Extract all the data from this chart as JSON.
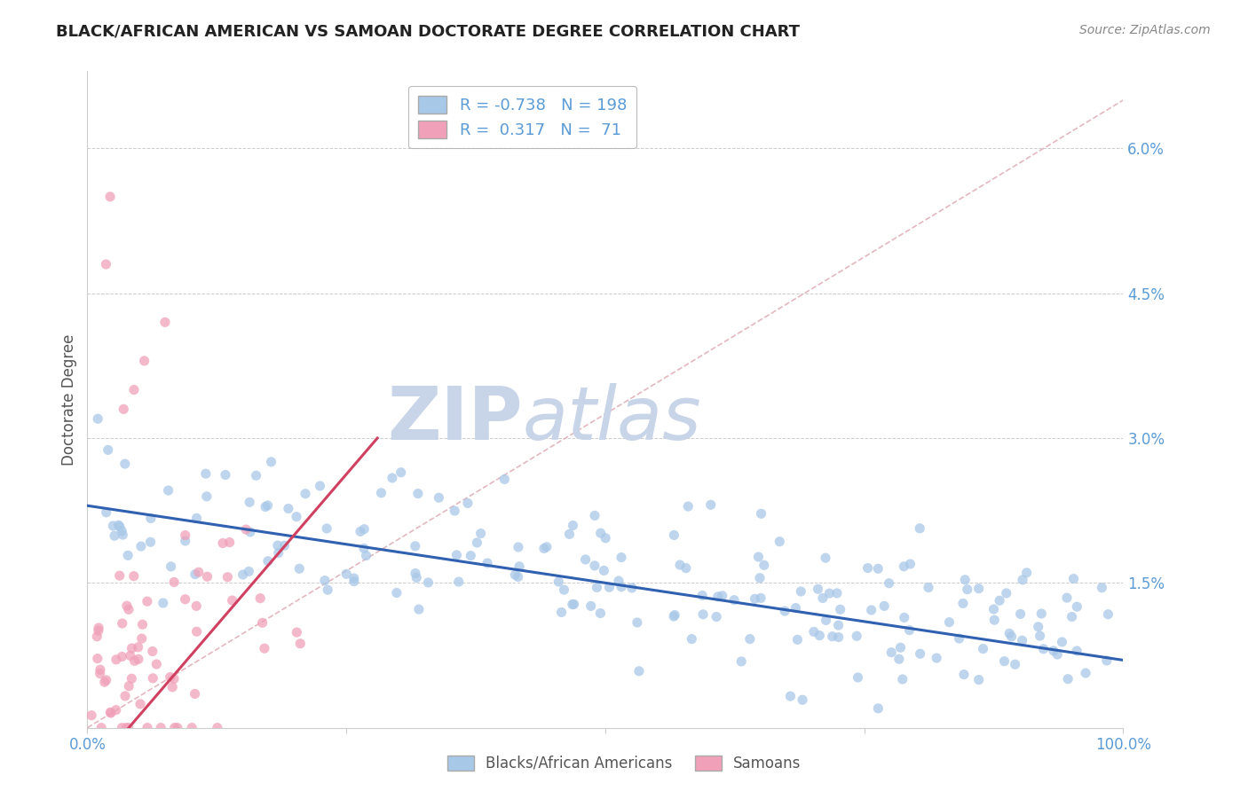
{
  "title": "BLACK/AFRICAN AMERICAN VS SAMOAN DOCTORATE DEGREE CORRELATION CHART",
  "source": "Source: ZipAtlas.com",
  "ylabel": "Doctorate Degree",
  "blue_R": -0.738,
  "blue_N": 198,
  "pink_R": 0.317,
  "pink_N": 71,
  "blue_color": "#A8C8E8",
  "pink_color": "#F0A0B8",
  "blue_line_color": "#3060B0",
  "pink_line_color": "#D04060",
  "diagonal_color": "#E0B0B8",
  "title_color": "#222222",
  "tick_label_color": "#5B9BD5",
  "watermark_zip_color": "#C8D4E8",
  "watermark_atlas_color": "#C8D4E8",
  "background_color": "#FFFFFF",
  "grid_color": "#CCCCCC",
  "xlim": [
    0.0,
    1.0
  ],
  "ylim": [
    0.0,
    0.065
  ],
  "ytick_vals": [
    0.0,
    0.015,
    0.03,
    0.045,
    0.06
  ],
  "ytick_labels": [
    "",
    "1.5%",
    "3.0%",
    "4.5%",
    "6.0%"
  ]
}
